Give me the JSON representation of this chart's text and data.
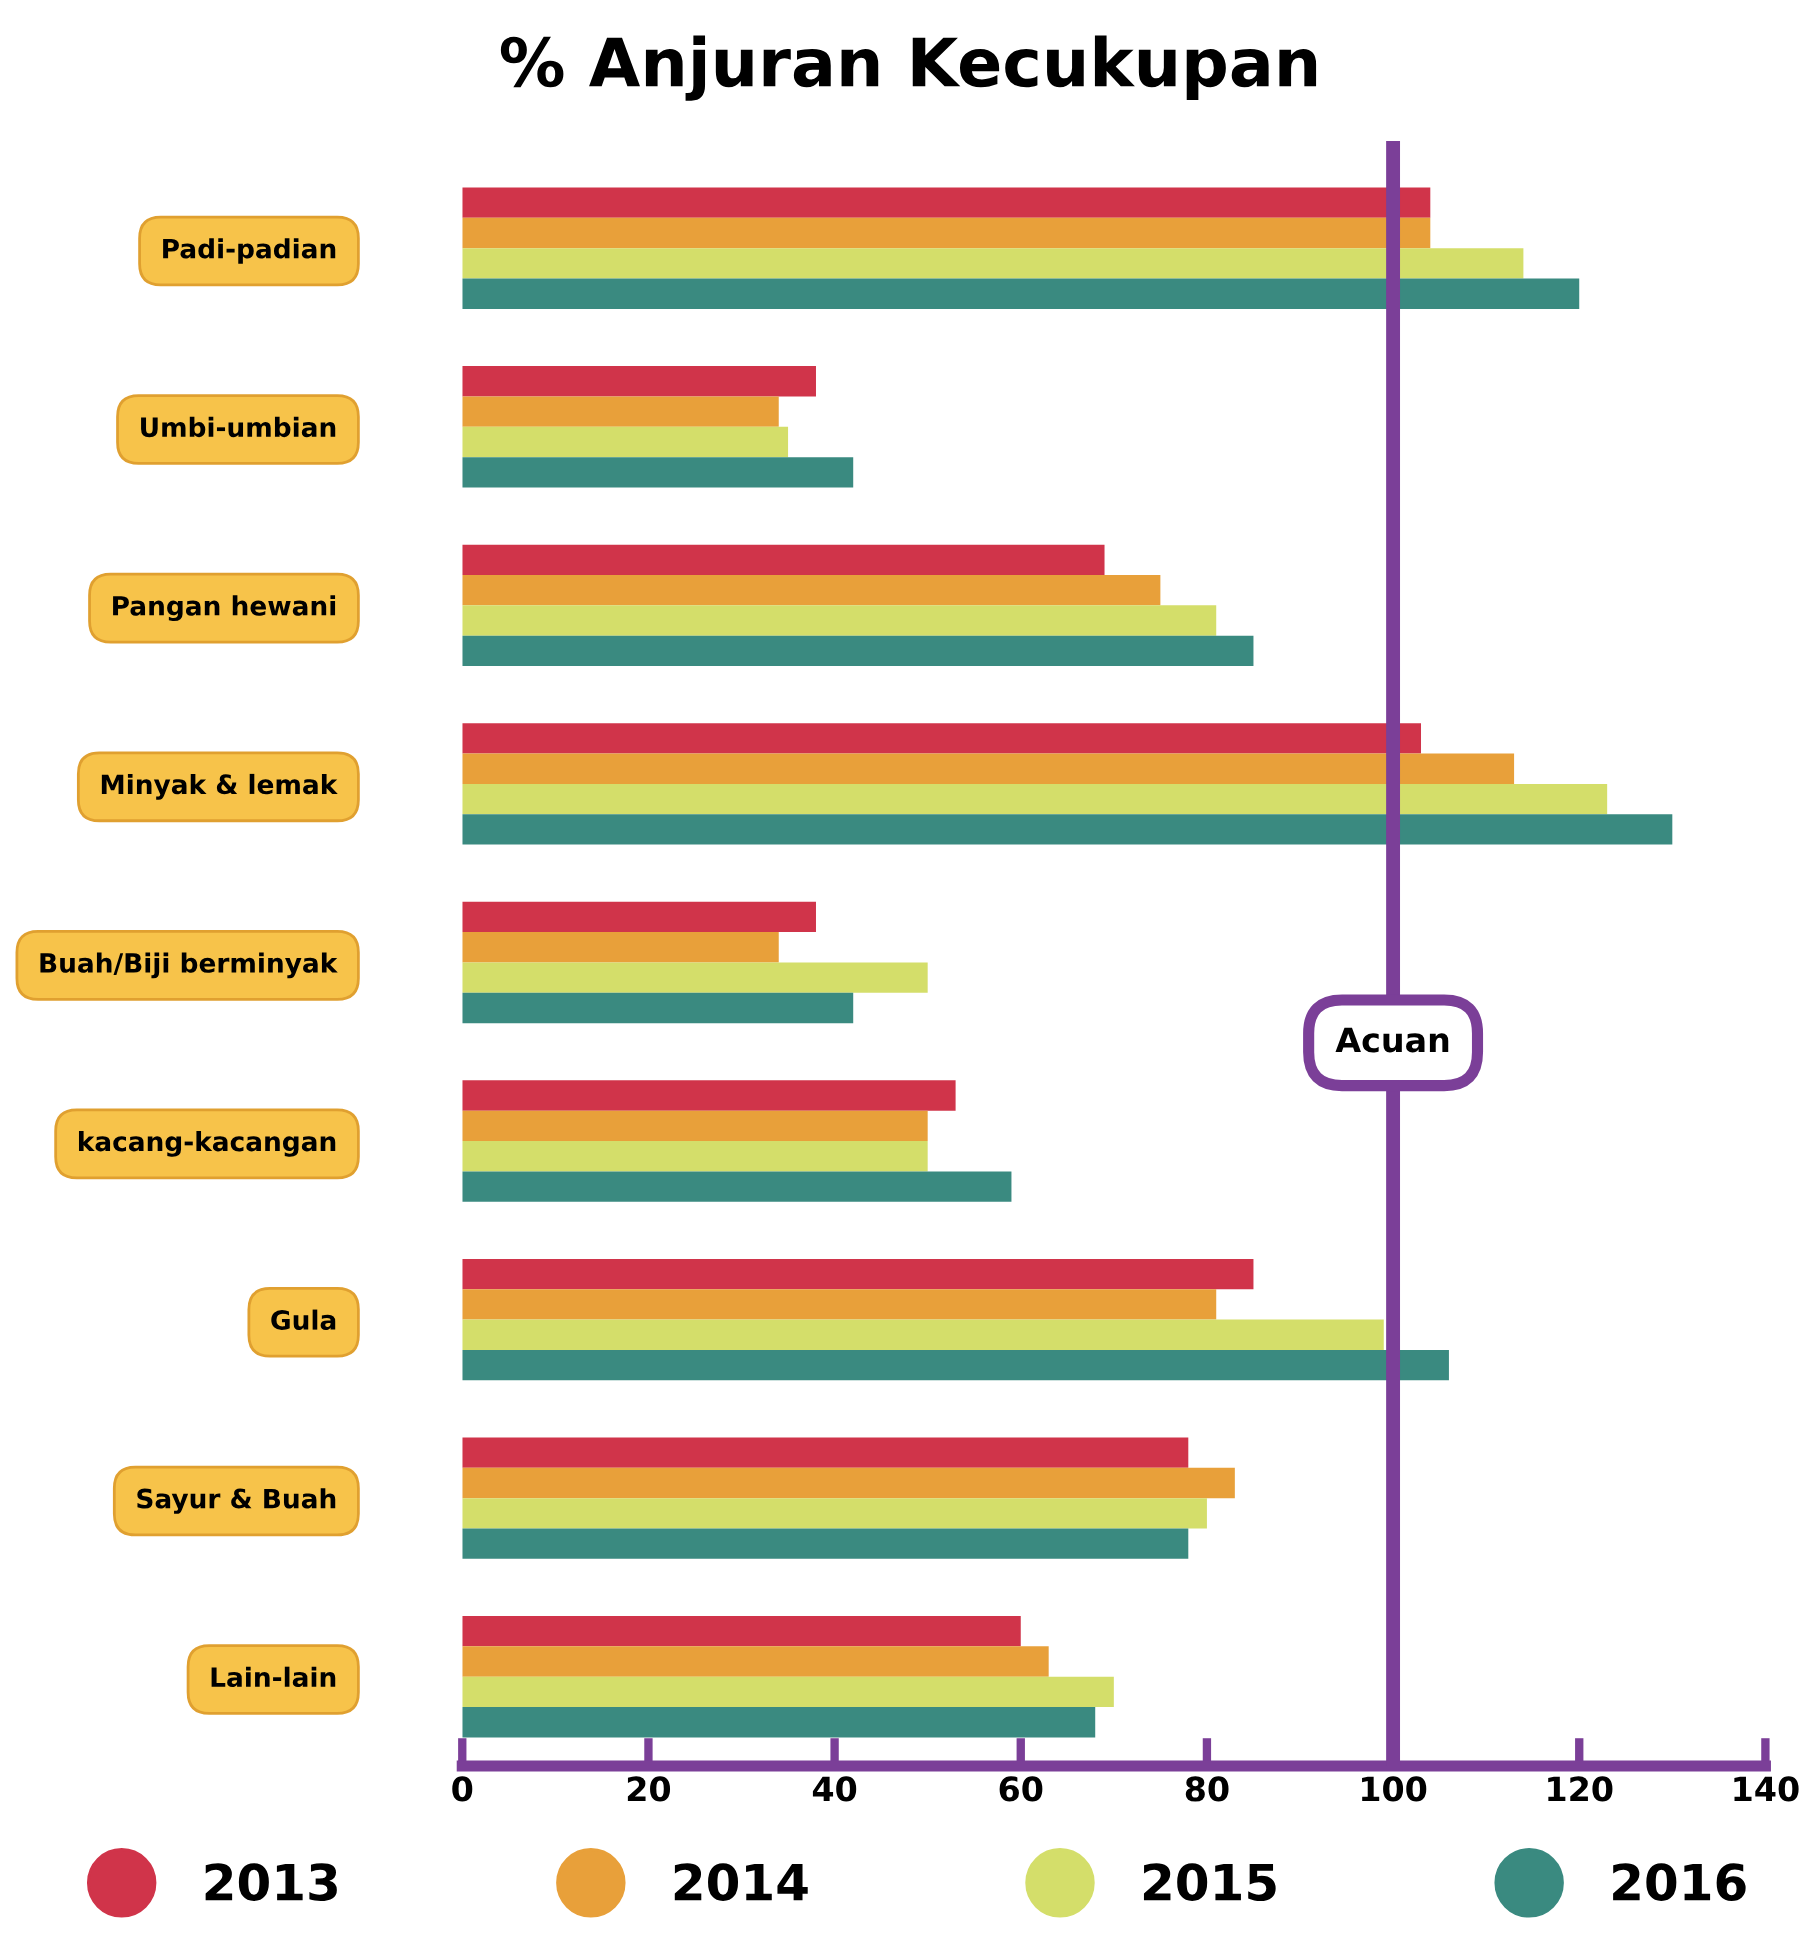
{
  "chart_data": {
    "type": "bar",
    "orientation": "horizontal",
    "title": "% Anjuran Kecukupan",
    "categories": [
      "Padi-padian",
      "Umbi-umbian",
      "Pangan hewani",
      "Minyak & lemak",
      "Buah/Biji berminyak",
      "kacang-kacangan",
      "Gula",
      "Sayur & Buah",
      "Lain-lain"
    ],
    "series": [
      {
        "name": "2013",
        "color": "#d0344a",
        "values": [
          104,
          38,
          69,
          103,
          38,
          53,
          85,
          78,
          60
        ]
      },
      {
        "name": "2014",
        "color": "#e8a03a",
        "values": [
          104,
          34,
          75,
          113,
          34,
          50,
          81,
          83,
          63
        ]
      },
      {
        "name": "2015",
        "color": "#d4de6a",
        "values": [
          114,
          35,
          81,
          123,
          50,
          50,
          99,
          80,
          70
        ]
      },
      {
        "name": "2016",
        "color": "#3a8a80",
        "values": [
          120,
          42,
          85,
          130,
          42,
          59,
          106,
          78,
          68
        ]
      }
    ],
    "xlim": [
      0,
      140
    ],
    "xticks": [
      0,
      20,
      40,
      60,
      80,
      100,
      120,
      140
    ],
    "ref_lines": [
      {
        "axis": "x",
        "value": 100,
        "label": "Acuan",
        "color": "#7b3f98"
      }
    ],
    "grid": false,
    "legend": "bottom"
  }
}
